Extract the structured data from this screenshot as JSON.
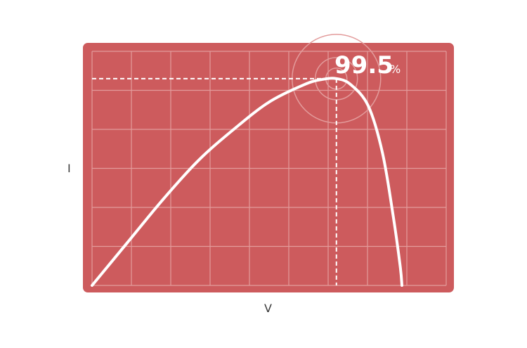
{
  "chart_data": {
    "type": "line",
    "title": "",
    "xlabel": "V",
    "ylabel": "I",
    "xlim": [
      0,
      10
    ],
    "ylim": [
      0,
      6
    ],
    "grid": true,
    "annotation": {
      "value": "99.5",
      "unit": "%",
      "x": 6.9,
      "y": 5.3
    },
    "series": [
      {
        "x": [
          0,
          1,
          2,
          3,
          4,
          5,
          6,
          6.5,
          6.9,
          7.3,
          7.8,
          8.2,
          8.5,
          8.7,
          8.75
        ],
        "y": [
          0,
          1.1,
          2.2,
          3.2,
          4.0,
          4.7,
          5.15,
          5.28,
          5.3,
          5.15,
          4.6,
          3.4,
          1.8,
          0.5,
          0
        ]
      }
    ]
  },
  "colors": {
    "panel": "#cd5b5d",
    "grid": "#e39c9c",
    "curve": "#ffffff",
    "label": "#3a3a3a"
  }
}
